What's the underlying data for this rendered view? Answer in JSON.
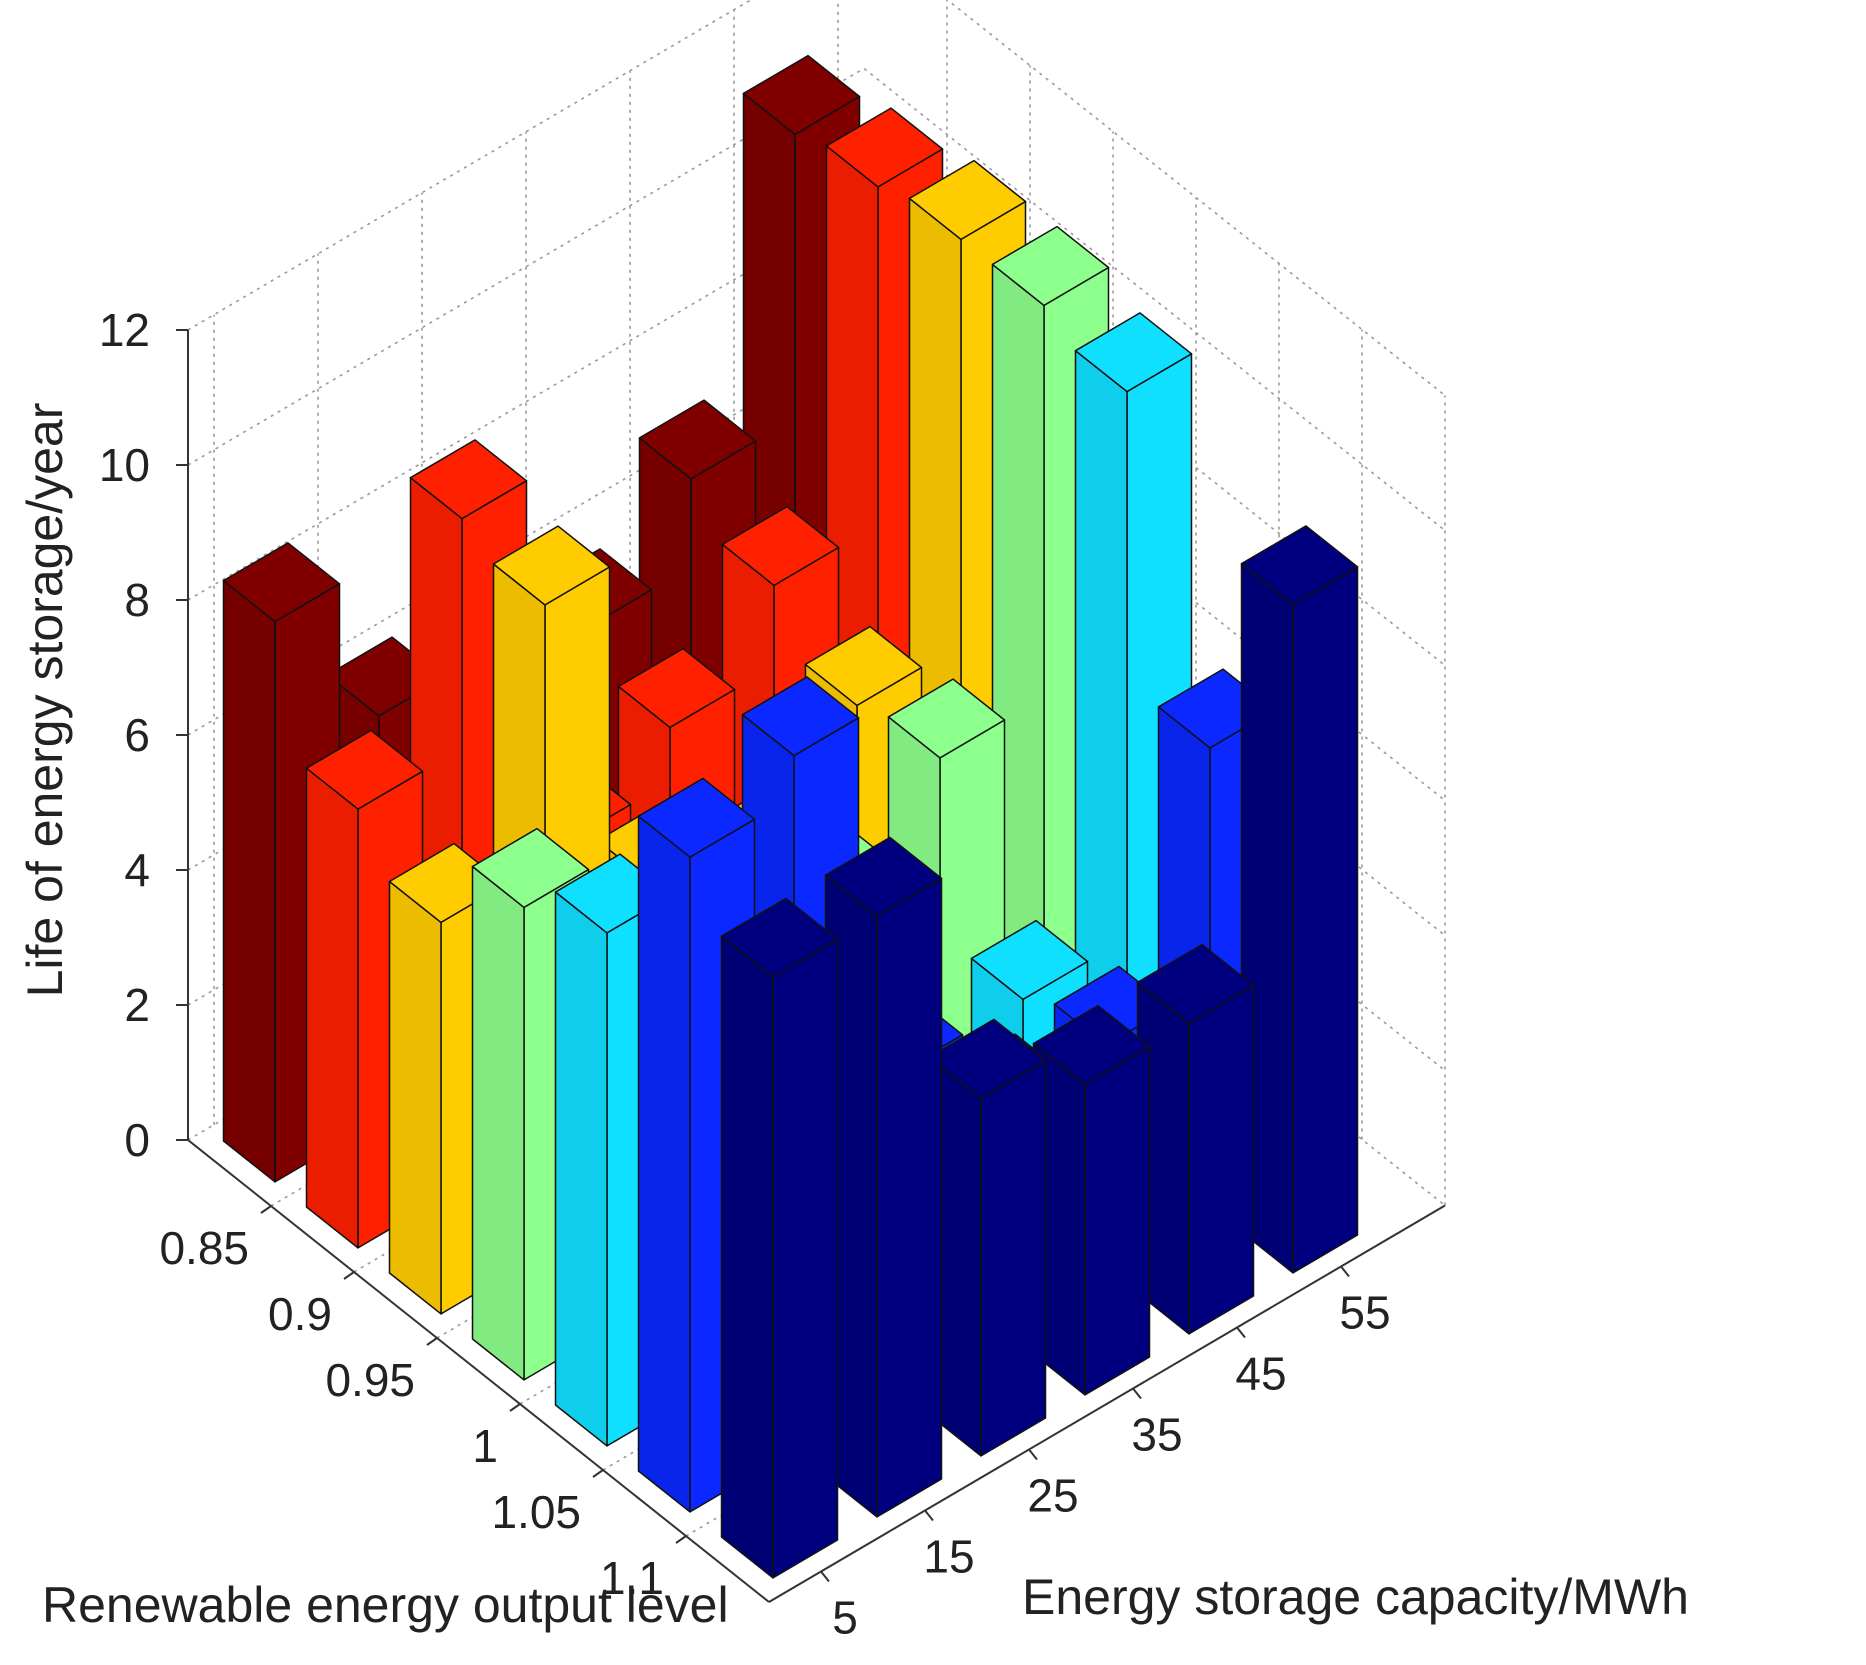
{
  "chart_data": {
    "type": "bar3d",
    "title": "",
    "zlabel": "Life of energy storage/year",
    "xlabel": "Renewable energy output level",
    "ylabel": "Energy storage capacity/MWh",
    "x_categories": [
      "0.85",
      "0.9",
      "0.95",
      "1",
      "1.05",
      "1.1"
    ],
    "y_categories": [
      "5",
      "15",
      "25",
      "35",
      "45",
      "55"
    ],
    "z_ticks": [
      "0",
      "2",
      "4",
      "6",
      "8",
      "10",
      "12"
    ],
    "zlim": [
      0,
      12
    ],
    "grid": true,
    "colors": [
      "#800000",
      "#FF2000",
      "#FFCC00",
      "#8CFF8C",
      "#10E0FF",
      "#0A28FF",
      "#00007F"
    ],
    "bars": [
      {
        "x": "0.85",
        "y": "5",
        "value": 8.3,
        "color_index": 0
      },
      {
        "x": "0.85",
        "y": "15",
        "value": 6.0,
        "color_index": 0
      },
      {
        "x": "0.85",
        "y": "25",
        "value": 5.0,
        "color_index": 0
      },
      {
        "x": "0.85",
        "y": "35",
        "value": 5.5,
        "color_index": 0
      },
      {
        "x": "0.85",
        "y": "45",
        "value": 6.8,
        "color_index": 0
      },
      {
        "x": "0.85",
        "y": "55",
        "value": 11.0,
        "color_index": 0
      },
      {
        "x": "0.9",
        "y": "5",
        "value": 6.5,
        "color_index": 1
      },
      {
        "x": "0.9",
        "y": "15",
        "value": 9.9,
        "color_index": 1
      },
      {
        "x": "0.9",
        "y": "25",
        "value": 4.2,
        "color_index": 1
      },
      {
        "x": "0.9",
        "y": "35",
        "value": 5.0,
        "color_index": 1
      },
      {
        "x": "0.9",
        "y": "45",
        "value": 6.2,
        "color_index": 1
      },
      {
        "x": "0.9",
        "y": "55",
        "value": 11.2,
        "color_index": 1
      },
      {
        "x": "0.95",
        "y": "5",
        "value": 5.8,
        "color_index": 2
      },
      {
        "x": "0.95",
        "y": "15",
        "value": 9.6,
        "color_index": 2
      },
      {
        "x": "0.95",
        "y": "25",
        "value": 4.6,
        "color_index": 2
      },
      {
        "x": "0.95",
        "y": "35",
        "value": 3.9,
        "color_index": 2
      },
      {
        "x": "0.95",
        "y": "45",
        "value": 5.4,
        "color_index": 2
      },
      {
        "x": "0.95",
        "y": "55",
        "value": 11.4,
        "color_index": 2
      },
      {
        "x": "1",
        "y": "5",
        "value": 7.0,
        "color_index": 3
      },
      {
        "x": "1",
        "y": "15",
        "value": 5.2,
        "color_index": 3
      },
      {
        "x": "1",
        "y": "25",
        "value": 4.1,
        "color_index": 3
      },
      {
        "x": "1",
        "y": "35",
        "value": 4.3,
        "color_index": 3
      },
      {
        "x": "1",
        "y": "45",
        "value": 5.6,
        "color_index": 3
      },
      {
        "x": "1",
        "y": "55",
        "value": 11.4,
        "color_index": 3
      },
      {
        "x": "1.05",
        "y": "5",
        "value": 7.6,
        "color_index": 4
      },
      {
        "x": "1.05",
        "y": "15",
        "value": 4.5,
        "color_index": 4
      },
      {
        "x": "1.05",
        "y": "25",
        "value": 3.9,
        "color_index": 4
      },
      {
        "x": "1.05",
        "y": "35",
        "value": 1.7,
        "color_index": 4
      },
      {
        "x": "1.05",
        "y": "45",
        "value": 3.0,
        "color_index": 4
      },
      {
        "x": "1.05",
        "y": "55",
        "value": 11.1,
        "color_index": 4
      },
      {
        "x": "1.1",
        "y": "5",
        "value": 9.7,
        "color_index": 5
      },
      {
        "x": "1.1",
        "y": "15",
        "value": 10.3,
        "color_index": 5
      },
      {
        "x": "1.1",
        "y": "25",
        "value": 4.7,
        "color_index": 5
      },
      {
        "x": "1.1",
        "y": "35",
        "value": 3.2,
        "color_index": 5
      },
      {
        "x": "1.1",
        "y": "45",
        "value": 3.3,
        "color_index": 5
      },
      {
        "x": "1.1",
        "y": "55",
        "value": 6.8,
        "color_index": 5
      },
      {
        "x": "1.1",
        "y": "5",
        "value": 8.9,
        "color_index": 6,
        "row": 6
      },
      {
        "x": "1.1",
        "y": "15",
        "value": 8.9,
        "color_index": 6,
        "row": 6
      },
      {
        "x": "1.1",
        "y": "25",
        "value": 5.3,
        "color_index": 6,
        "row": 6
      },
      {
        "x": "1.1",
        "y": "35",
        "value": 4.6,
        "color_index": 6,
        "row": 6
      },
      {
        "x": "1.1",
        "y": "45",
        "value": 4.6,
        "color_index": 6,
        "row": 6
      },
      {
        "x": "1.1",
        "y": "55",
        "value": 9.9,
        "color_index": 6,
        "row": 6
      }
    ]
  }
}
